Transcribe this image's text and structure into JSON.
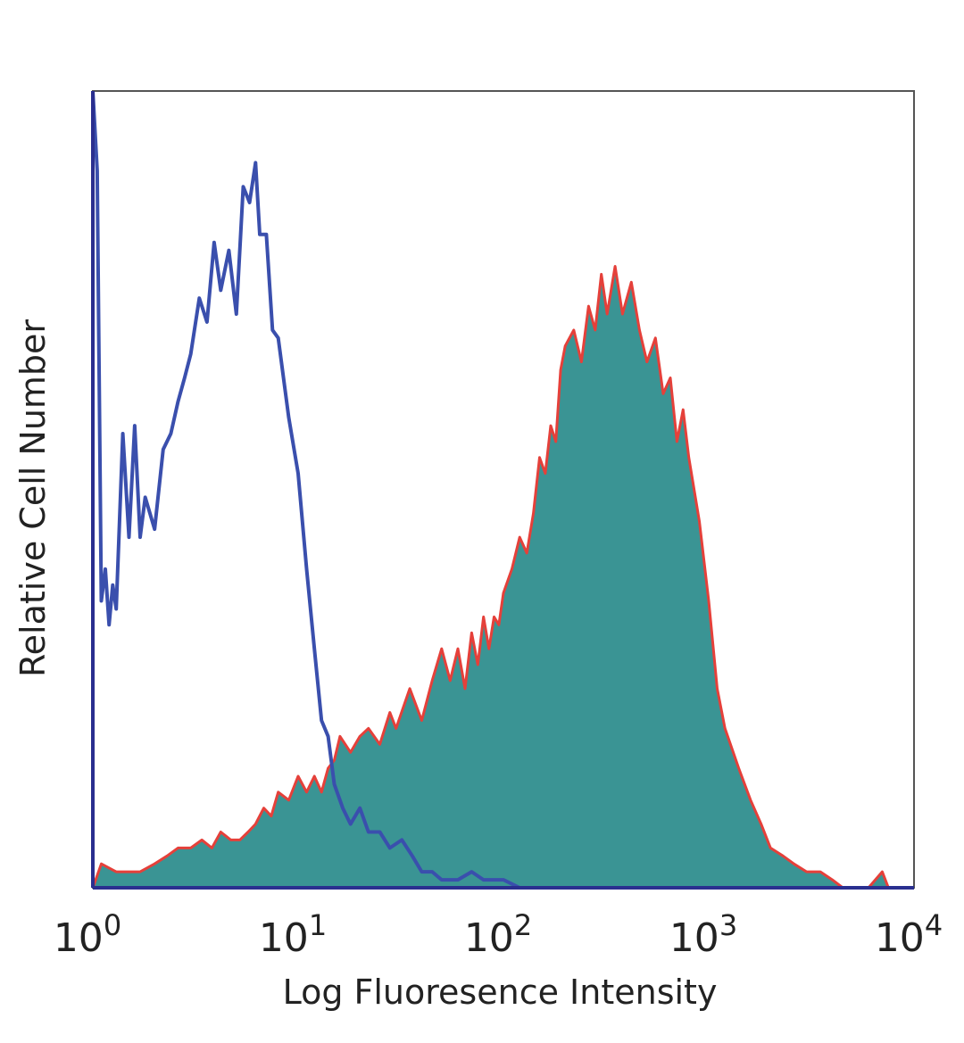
{
  "chart_data": {
    "type": "area",
    "title": "",
    "xlabel": "Log Fluoresence Intensity",
    "ylabel": "Relative Cell Number",
    "x_scale": "log",
    "xlim": [
      1,
      10000
    ],
    "ylim": [
      0,
      100
    ],
    "grid": false,
    "legend": "none",
    "x_ticks": [
      {
        "value": 1,
        "base": "10",
        "exp": "0"
      },
      {
        "value": 10,
        "base": "10",
        "exp": "1"
      },
      {
        "value": 100,
        "base": "10",
        "exp": "2"
      },
      {
        "value": 1000,
        "base": "10",
        "exp": "3"
      },
      {
        "value": 10000,
        "base": "10",
        "exp": "4"
      }
    ],
    "series": [
      {
        "style": "outline",
        "color": "#3a4fad",
        "x": [
          1.0,
          1.05,
          1.1,
          1.15,
          1.2,
          1.25,
          1.3,
          1.4,
          1.5,
          1.6,
          1.7,
          1.8,
          2.0,
          2.2,
          2.4,
          2.6,
          2.8,
          3.0,
          3.3,
          3.6,
          3.9,
          4.2,
          4.6,
          5.0,
          5.4,
          5.8,
          6.2,
          6.5,
          7.0,
          7.5,
          8.0,
          9.0,
          10.0,
          11.0,
          12.0,
          13.0,
          14.0,
          15.0,
          16.5,
          18.0,
          20.0,
          22.0,
          25.0,
          28.0,
          32.0,
          36.0,
          40.0,
          45.0,
          50.0,
          60.0,
          70.0,
          80.0,
          90.0,
          100.0,
          120.0,
          150.0,
          200.0,
          10000.0
        ],
        "y": [
          100,
          90,
          36,
          40,
          33,
          38,
          35,
          57,
          44,
          58,
          44,
          49,
          45,
          55,
          57,
          61,
          64,
          67,
          74,
          71,
          81,
          75,
          80,
          72,
          88,
          86,
          91,
          82,
          82,
          70,
          69,
          59,
          52,
          40,
          30,
          21,
          19,
          13,
          10,
          8,
          10,
          7,
          7,
          5,
          6,
          4,
          2,
          2,
          1,
          1,
          2,
          1,
          1,
          1,
          0,
          0,
          0,
          0
        ]
      },
      {
        "style": "filled",
        "fill": "#3a9494",
        "color": "#e5403a",
        "x": [
          1.0,
          1.1,
          1.3,
          1.5,
          1.7,
          2.0,
          2.3,
          2.6,
          3.0,
          3.4,
          3.8,
          4.2,
          4.7,
          5.2,
          5.7,
          6.2,
          6.8,
          7.4,
          8.0,
          9.0,
          10.0,
          11.0,
          12.0,
          13.0,
          14.0,
          15.0,
          16.0,
          18.0,
          20.0,
          22.0,
          25.0,
          28.0,
          30.0,
          35.0,
          40.0,
          45.0,
          50.0,
          55.0,
          60.0,
          65.0,
          70.0,
          75.0,
          80.0,
          85.0,
          90.0,
          95.0,
          100.0,
          110.0,
          120.0,
          130.0,
          140.0,
          150.0,
          160.0,
          170.0,
          180.0,
          190.0,
          200.0,
          220.0,
          240.0,
          260.0,
          280.0,
          300.0,
          320.0,
          350.0,
          380.0,
          420.0,
          460.0,
          500.0,
          550.0,
          600.0,
          650.0,
          700.0,
          750.0,
          800.0,
          900.0,
          1000.0,
          1100.0,
          1200.0,
          1400.0,
          1600.0,
          1800.0,
          2000.0,
          2300.0,
          2600.0,
          3000.0,
          3500.0,
          4000.0,
          4500.0,
          6000.0,
          7000.0,
          7500.0,
          8000.0,
          10000.0
        ],
        "y": [
          0,
          3,
          2,
          2,
          2,
          3,
          4,
          5,
          5,
          6,
          5,
          7,
          6,
          6,
          7,
          8,
          10,
          9,
          12,
          11,
          14,
          12,
          14,
          12,
          15,
          16,
          19,
          17,
          19,
          20,
          18,
          22,
          20,
          25,
          21,
          26,
          30,
          26,
          30,
          25,
          32,
          28,
          34,
          30,
          34,
          33,
          37,
          40,
          44,
          42,
          47,
          54,
          52,
          58,
          56,
          65,
          68,
          70,
          66,
          73,
          70,
          77,
          72,
          78,
          72,
          76,
          70,
          66,
          69,
          62,
          64,
          56,
          60,
          54,
          46,
          36,
          25,
          20,
          15,
          11,
          8,
          5,
          4,
          3,
          2,
          2,
          1,
          0,
          0,
          2,
          0,
          0,
          0
        ]
      }
    ]
  }
}
